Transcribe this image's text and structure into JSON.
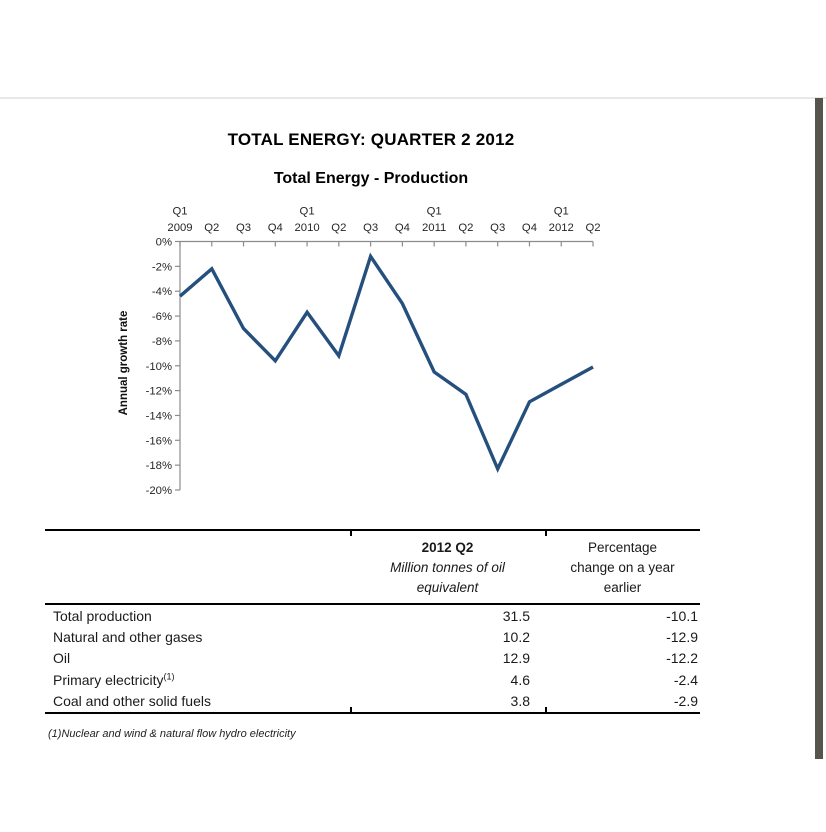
{
  "report": {
    "title": "TOTAL ENERGY: QUARTER 2 2012"
  },
  "chart_data": {
    "type": "line",
    "title": "Total Energy - Production",
    "ylabel": "Annual growth rate",
    "xlabel": "",
    "categories": [
      "2009 Q1",
      "2009 Q2",
      "2009 Q3",
      "2009 Q4",
      "2010 Q1",
      "2010 Q2",
      "2010 Q3",
      "2010 Q4",
      "2011 Q1",
      "2011 Q2",
      "2011 Q3",
      "2011 Q4",
      "2012 Q1",
      "2012 Q2"
    ],
    "x_labels": [
      "Q1\n2009",
      "Q2",
      "Q3",
      "Q4",
      "Q1\n2010",
      "Q2",
      "Q3",
      "Q4",
      "Q1\n2011",
      "Q2",
      "Q3",
      "Q4",
      "Q1\n2012",
      "Q2"
    ],
    "series": [
      {
        "name": "Total production annual growth rate (%)",
        "values": [
          -4.4,
          -2.2,
          -7.0,
          -9.6,
          -5.7,
          -9.2,
          -1.2,
          -5.0,
          -10.5,
          -12.3,
          -18.3,
          -12.9,
          -11.5,
          -10.1
        ]
      }
    ],
    "ylim": [
      -20,
      0
    ],
    "ytick_step": 2,
    "ytick_labels": [
      "0%",
      "-2%",
      "-4%",
      "-6%",
      "-8%",
      "-10%",
      "-12%",
      "-14%",
      "-16%",
      "-18%",
      "-20%"
    ],
    "grid": false,
    "legend": "none",
    "axis_position": "x-axis at top (0%), category labels above axis, ticks below axis",
    "line_color": "#25507d",
    "axis_color": "#8c8c8c"
  },
  "table": {
    "col2": {
      "title": "2012 Q2",
      "subtitle": "Million tonnes of oil\nequivalent"
    },
    "col3": {
      "title": "Percentage\nchange on a year\nearlier"
    },
    "rows": [
      {
        "label": "Total production",
        "sup": "",
        "mtoe": "31.5",
        "pct": "-10.1"
      },
      {
        "label": "Natural and other gases",
        "sup": "",
        "mtoe": "10.2",
        "pct": "-12.9"
      },
      {
        "label": "Oil",
        "sup": "",
        "mtoe": "12.9",
        "pct": "-12.2"
      },
      {
        "label": "Primary electricity",
        "sup": "(1)",
        "mtoe": "4.6",
        "pct": "-2.4"
      },
      {
        "label": "Coal and other solid fuels",
        "sup": "",
        "mtoe": "3.8",
        "pct": "-2.9"
      }
    ],
    "footnote": "(1)Nuclear and wind & natural flow hydro electricity"
  }
}
